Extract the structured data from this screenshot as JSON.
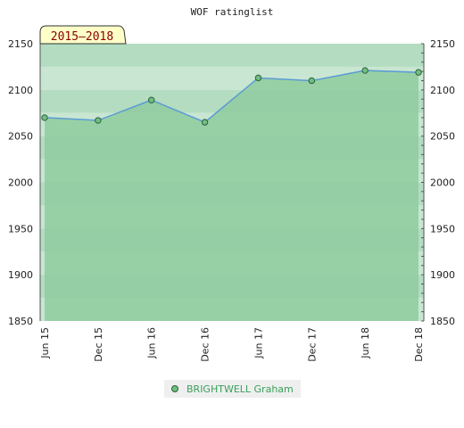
{
  "chart_data": {
    "type": "area",
    "title": "WOF ratinglist",
    "range_label": "2015–2018",
    "categories": [
      "Jun 15",
      "Dec 15",
      "Jun 16",
      "Dec 16",
      "Jun 17",
      "Dec 17",
      "Jun 18",
      "Dec 18"
    ],
    "ylim": [
      1850,
      2150
    ],
    "yticks": [
      1850,
      1900,
      1950,
      2000,
      2050,
      2100,
      2150
    ],
    "series": [
      {
        "name": "BRIGHTWELL Graham",
        "values": [
          2070,
          2067,
          2089,
          2065,
          2113,
          2110,
          2121,
          2119
        ]
      }
    ],
    "legend_position": "bottom-center",
    "colors": {
      "line": "#5b9bd5",
      "fill": "#8fcb9f",
      "marker": "#3d8b57",
      "legend_text": "#3aa05a",
      "range_label_bg": "#ffffc8",
      "range_label_text": "#8b0000"
    }
  }
}
